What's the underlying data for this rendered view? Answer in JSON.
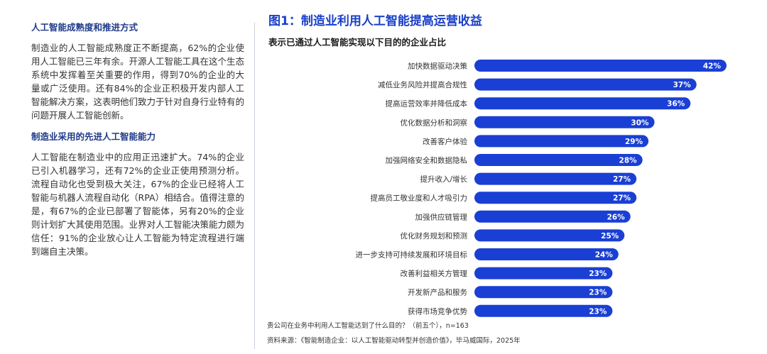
{
  "left_panel": {
    "section1_title": "人工智能成熟度和推进方式",
    "section1_body": "制造业的人工智能成熟度正不断提高，62%的企业使用人工智能已三年有余。开源人工智能工具在这个生态系统中发挥着至关重要的作用，得到70%的企业的大量或广泛使用。还有84%的企业正积极开发内部人工智能解决方案，这表明他们致力于针对自身行业特有的问题开展人工智能创新。",
    "section2_title": "制造业采用的先进人工智能能力",
    "section2_body": "人工智能在制造业中的应用正迅速扩大。74%的企业已引入机器学习，还有72%的企业正使用预测分析。流程自动化也受到极大关注，67%的企业已经将人工智能与机器人流程自动化（RPA）相结合。值得注意的是，有67%的企业已部署了智能体，另有20%的企业则计划扩大其使用范围。业界对人工智能决策能力颇为信任：91%的企业放心让人工智能为特定流程进行端到端自主决策。"
  },
  "chart_data": {
    "type": "bar",
    "orientation": "horizontal",
    "title": "图1：制造业利用人工智能提高运营收益",
    "subtitle": "表示已通过人工智能实现以下目的的企业占比",
    "categories": [
      "加快数据驱动决策",
      "减低业务风险并提高合规性",
      "提高运营效率并降低成本",
      "优化数据分析和洞察",
      "改善客户体验",
      "加强网络安全和数据隐私",
      "提升收入/增长",
      "提高员工敬业度和人才吸引力",
      "加强供应链管理",
      "优化财务规划和预测",
      "进一步支持可持续发展和环境目标",
      "改善利益相关方管理",
      "开发新产品和服务",
      "获得市场竞争优势"
    ],
    "values": [
      42,
      37,
      36,
      30,
      29,
      28,
      27,
      27,
      26,
      25,
      24,
      23,
      23,
      23
    ],
    "value_labels": [
      "42%",
      "37%",
      "36%",
      "30%",
      "29%",
      "28%",
      "27%",
      "27%",
      "26%",
      "25%",
      "24%",
      "23%",
      "23%",
      "23%"
    ],
    "bar_color": "#1a3fd4",
    "xlim": [
      0,
      42
    ],
    "grid": false,
    "footnote": "贵公司在业务中利用人工智能达到了什么目的？（前五个），n=163",
    "source": "资料来源：《智能制造企业：以人工智能驱动转型并创造价值》，毕马威国际，2025年"
  }
}
